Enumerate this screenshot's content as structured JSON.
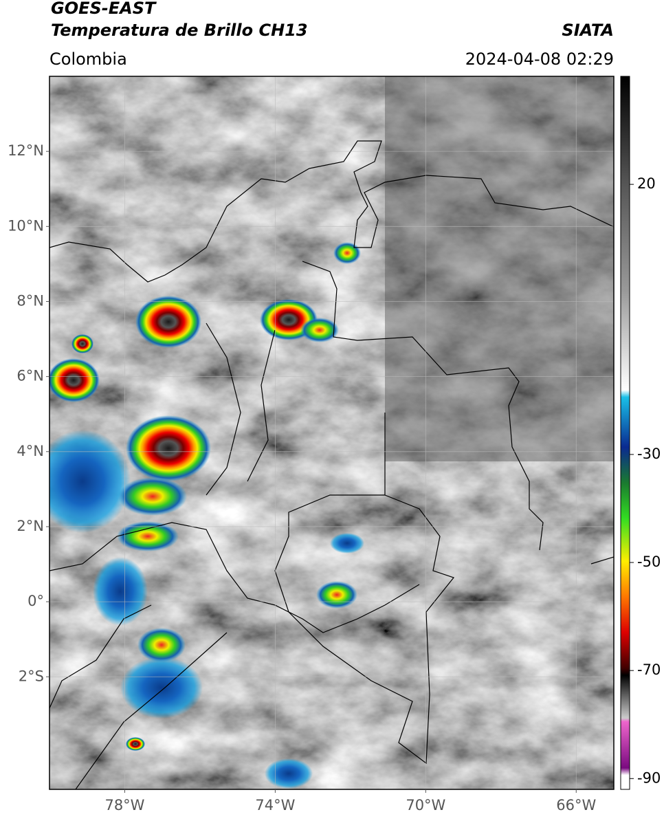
{
  "chart_data": {
    "type": "map",
    "title": "GOES-EAST",
    "subtitle": "Temperatura de Brillo CH13",
    "source": "SIATA",
    "region": "Colombia",
    "timestamp": "2024-04-08 02:29",
    "xlim": [
      -80,
      -65
    ],
    "ylim": [
      -5,
      14
    ],
    "xticks": [
      {
        "value": -78,
        "label": "78°W"
      },
      {
        "value": -74,
        "label": "74°W"
      },
      {
        "value": -70,
        "label": "70°W"
      },
      {
        "value": -66,
        "label": "66°W"
      }
    ],
    "yticks": [
      {
        "value": 12,
        "label": "12°N"
      },
      {
        "value": 10,
        "label": "10°N"
      },
      {
        "value": 8,
        "label": "8°N"
      },
      {
        "value": 6,
        "label": "6°N"
      },
      {
        "value": 4,
        "label": "4°N"
      },
      {
        "value": 2,
        "label": "2°N"
      },
      {
        "value": 0,
        "label": "0°"
      },
      {
        "value": -2,
        "label": "2°S"
      }
    ],
    "grid": true,
    "colorbar_lim": [
      -92,
      40
    ],
    "colorbar_ticks": [
      20,
      -30,
      -50,
      -70,
      -90
    ]
  }
}
